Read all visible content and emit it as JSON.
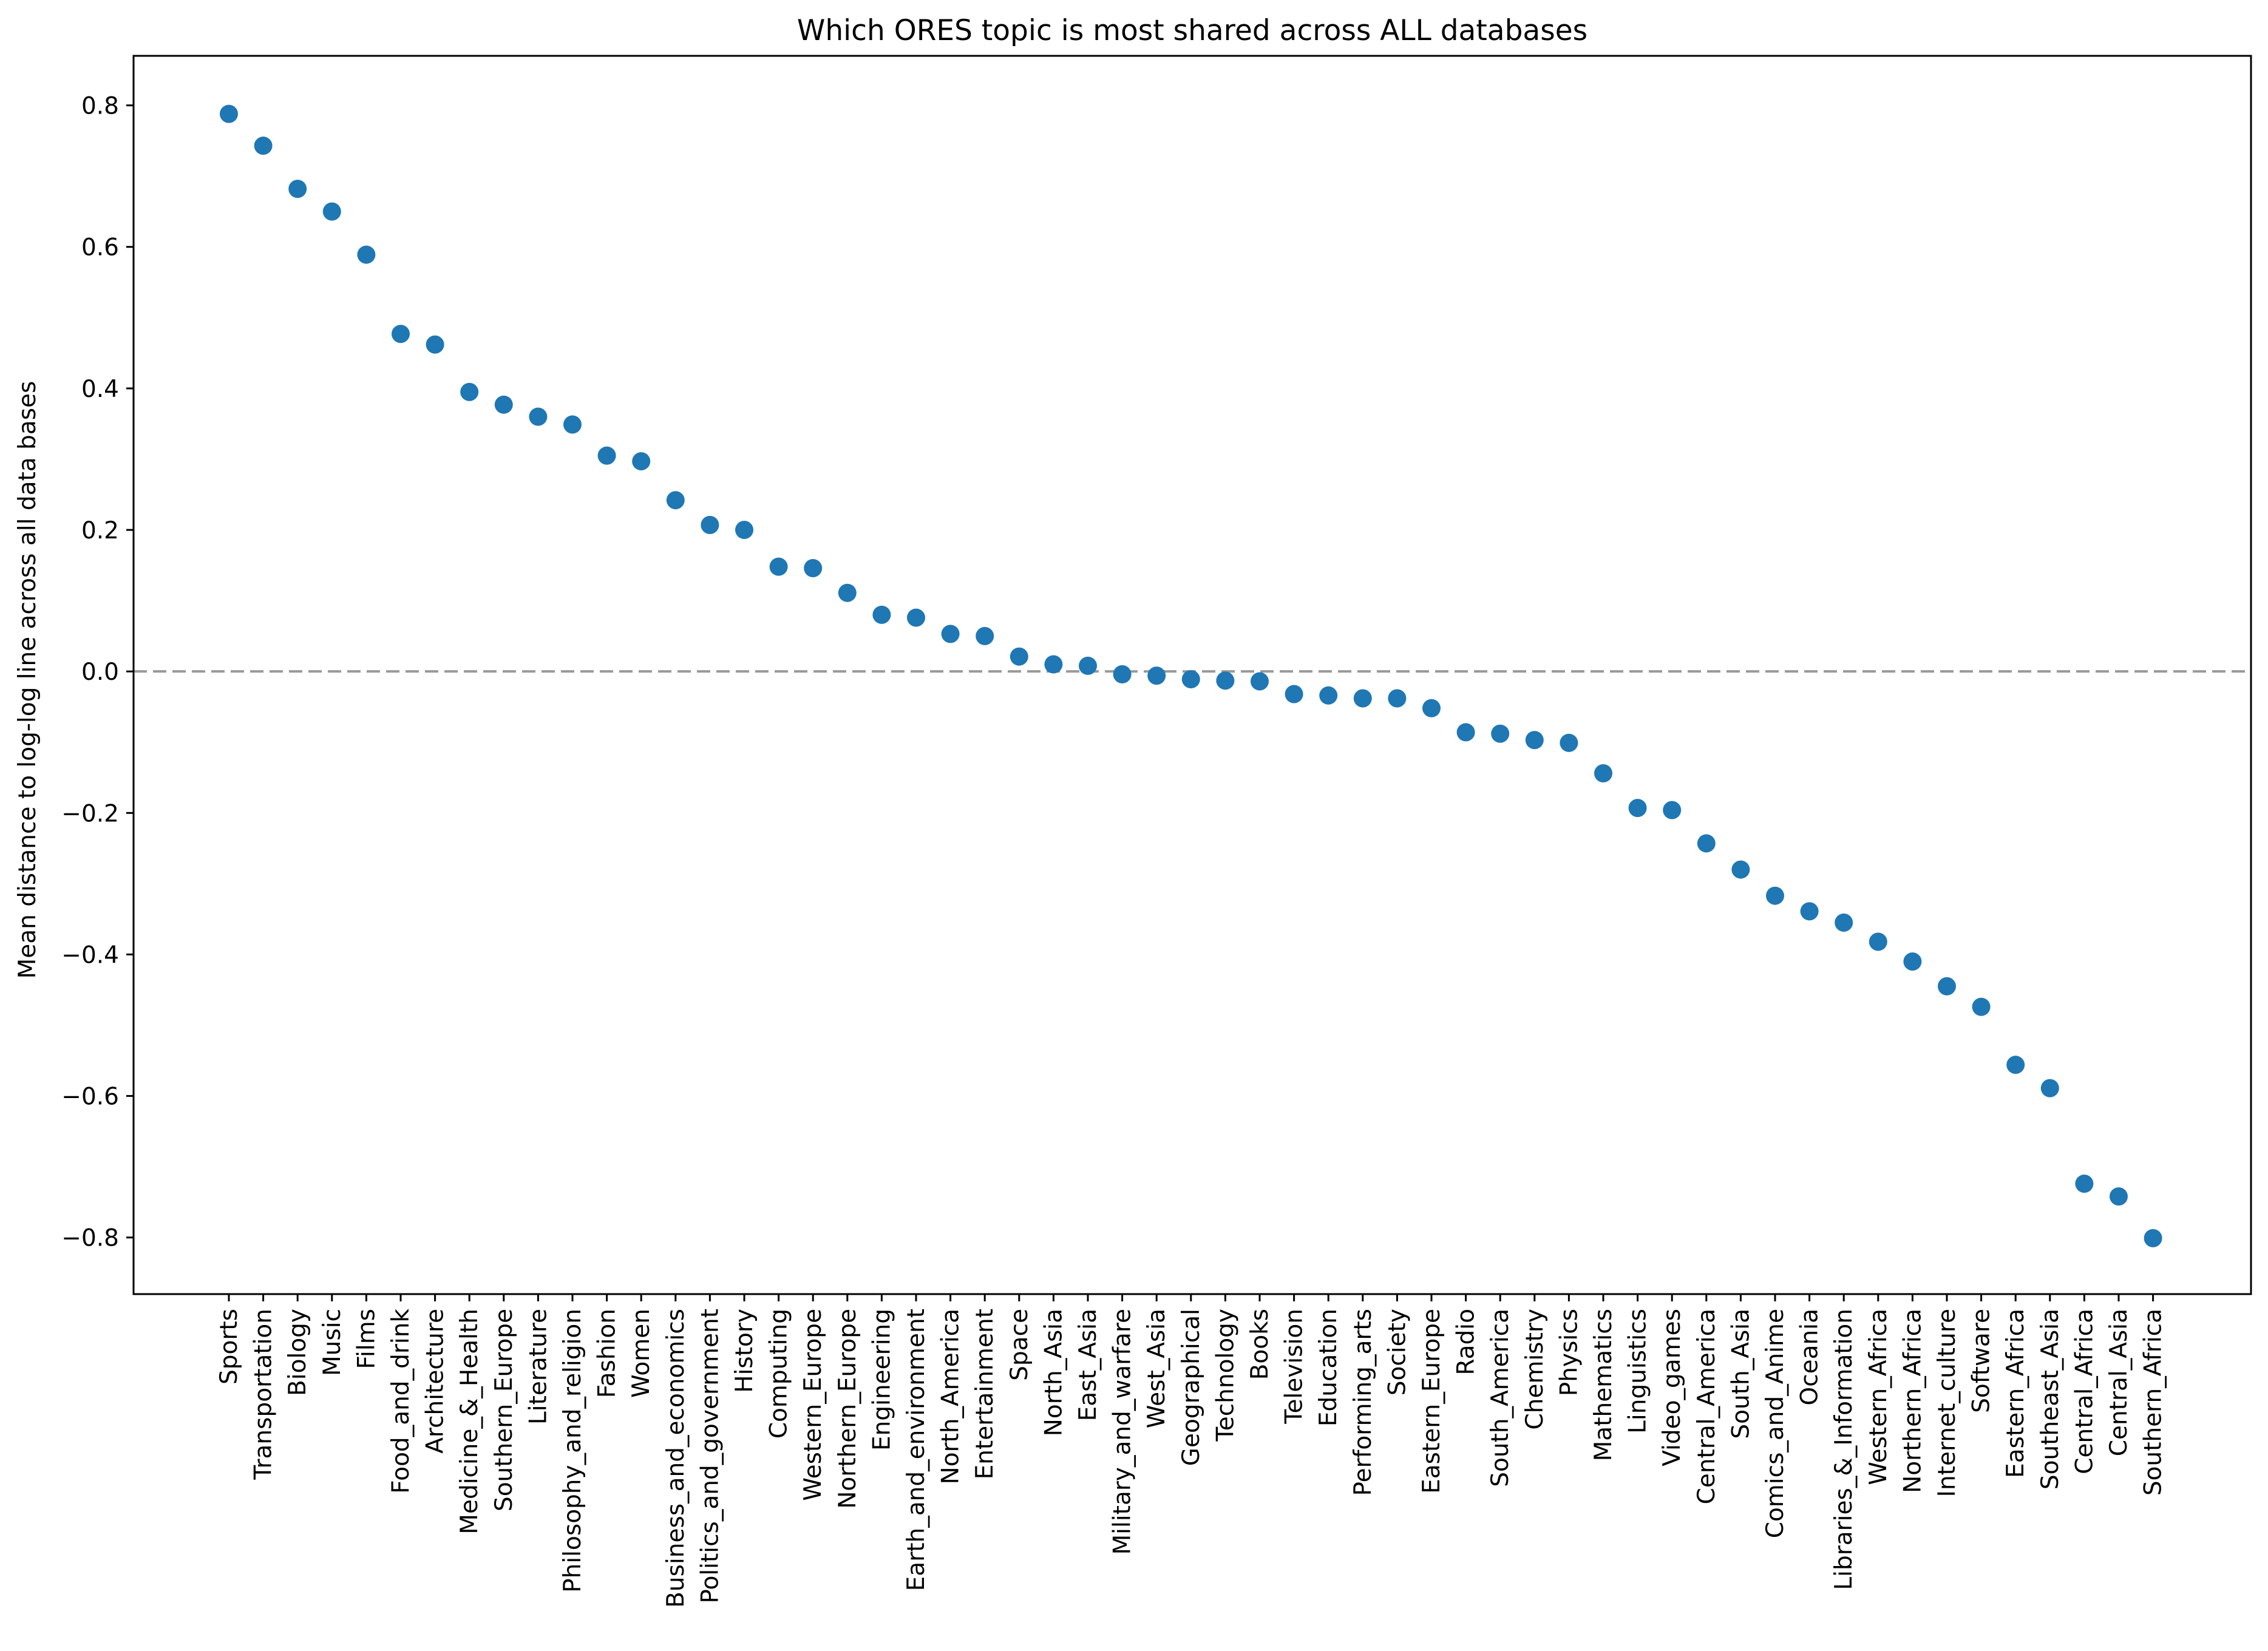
{
  "chart_data": {
    "type": "scatter",
    "title": "Which ORES topic is most shared across ALL databases",
    "xlabel": "",
    "ylabel": "Mean distance to log-log line across all data bases",
    "ylim": [
      -0.88,
      0.87
    ],
    "yticks": [
      -0.8,
      -0.6,
      -0.4,
      -0.2,
      0.0,
      0.2,
      0.4,
      0.6,
      0.8
    ],
    "ytick_labels": [
      "−0.8",
      "−0.6",
      "−0.4",
      "−0.2",
      "0.0",
      "0.2",
      "0.4",
      "0.6",
      "0.8"
    ],
    "reference_line": {
      "y": 0.0,
      "style": "dashed",
      "color": "#999999"
    },
    "grid": false,
    "marker_color": "#1f77b4",
    "categories": [
      "Sports",
      "Transportation",
      "Biology",
      "Music",
      "Films",
      "Food_and_drink",
      "Architecture",
      "Medicine_&_Health",
      "Southern_Europe",
      "Literature",
      "Philosophy_and_religion",
      "Fashion",
      "Women",
      "Business_and_economics",
      "Politics_and_government",
      "History",
      "Computing",
      "Western_Europe",
      "Northern_Europe",
      "Engineering",
      "Earth_and_environment",
      "North_America",
      "Entertainment",
      "Space",
      "North_Asia",
      "East_Asia",
      "Military_and_warfare",
      "West_Asia",
      "Geographical",
      "Technology",
      "Books",
      "Television",
      "Education",
      "Performing_arts",
      "Society",
      "Eastern_Europe",
      "Radio",
      "South_America",
      "Chemistry",
      "Physics",
      "Mathematics",
      "Linguistics",
      "Video_games",
      "Central_America",
      "South_Asia",
      "Comics_and_Anime",
      "Oceania",
      "Libraries_&_Information",
      "Western_Africa",
      "Northern_Africa",
      "Internet_culture",
      "Software",
      "Eastern_Africa",
      "Southeast_Asia",
      "Central_Africa",
      "Central_Asia",
      "Southern_Africa"
    ],
    "values": [
      0.788,
      0.743,
      0.682,
      0.65,
      0.589,
      0.477,
      0.462,
      0.395,
      0.377,
      0.36,
      0.349,
      0.305,
      0.297,
      0.242,
      0.207,
      0.2,
      0.148,
      0.146,
      0.111,
      0.08,
      0.076,
      0.053,
      0.05,
      0.021,
      0.01,
      0.008,
      -0.004,
      -0.006,
      -0.011,
      -0.013,
      -0.014,
      -0.032,
      -0.034,
      -0.038,
      -0.038,
      -0.052,
      -0.086,
      -0.088,
      -0.097,
      -0.101,
      -0.144,
      -0.193,
      -0.196,
      -0.243,
      -0.28,
      -0.317,
      -0.339,
      -0.355,
      -0.382,
      -0.41,
      -0.445,
      -0.474,
      -0.556,
      -0.589,
      -0.724,
      -0.742,
      -0.801
    ]
  }
}
